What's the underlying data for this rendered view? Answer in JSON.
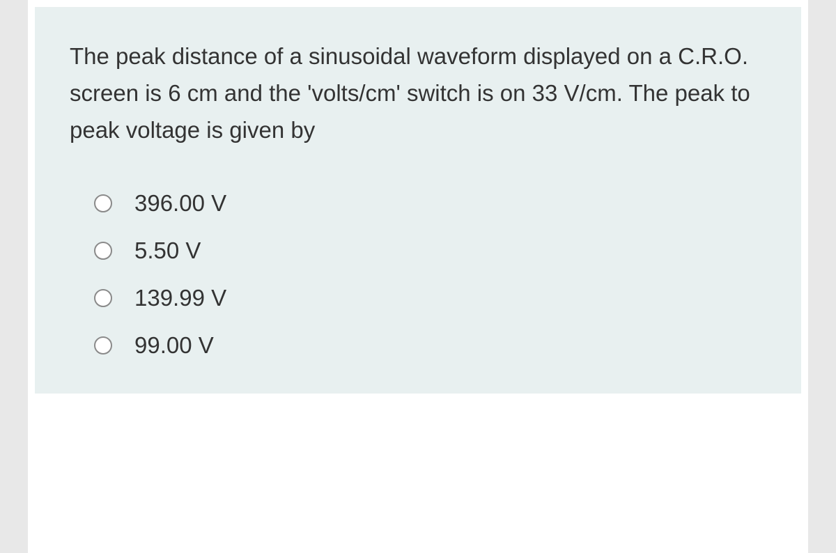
{
  "question": {
    "text": "The peak distance of a sinusoidal waveform displayed on a C.R.O. screen is 6 cm and the 'volts/cm' switch is on 33 V/cm. The peak to peak voltage is given by",
    "options": [
      {
        "label": "396.00 V"
      },
      {
        "label": "5.50 V"
      },
      {
        "label": "139.99 V"
      },
      {
        "label": "99.00 V"
      }
    ]
  },
  "colors": {
    "page_bg": "#e8e8e8",
    "card_bg": "#e8f0f0",
    "container_bg": "#ffffff",
    "text": "#333333",
    "radio_border": "#8a8a8a"
  },
  "typography": {
    "font_family": "Arial, Helvetica, sans-serif",
    "question_fontsize": 33,
    "option_fontsize": 33,
    "line_height": 1.6
  }
}
